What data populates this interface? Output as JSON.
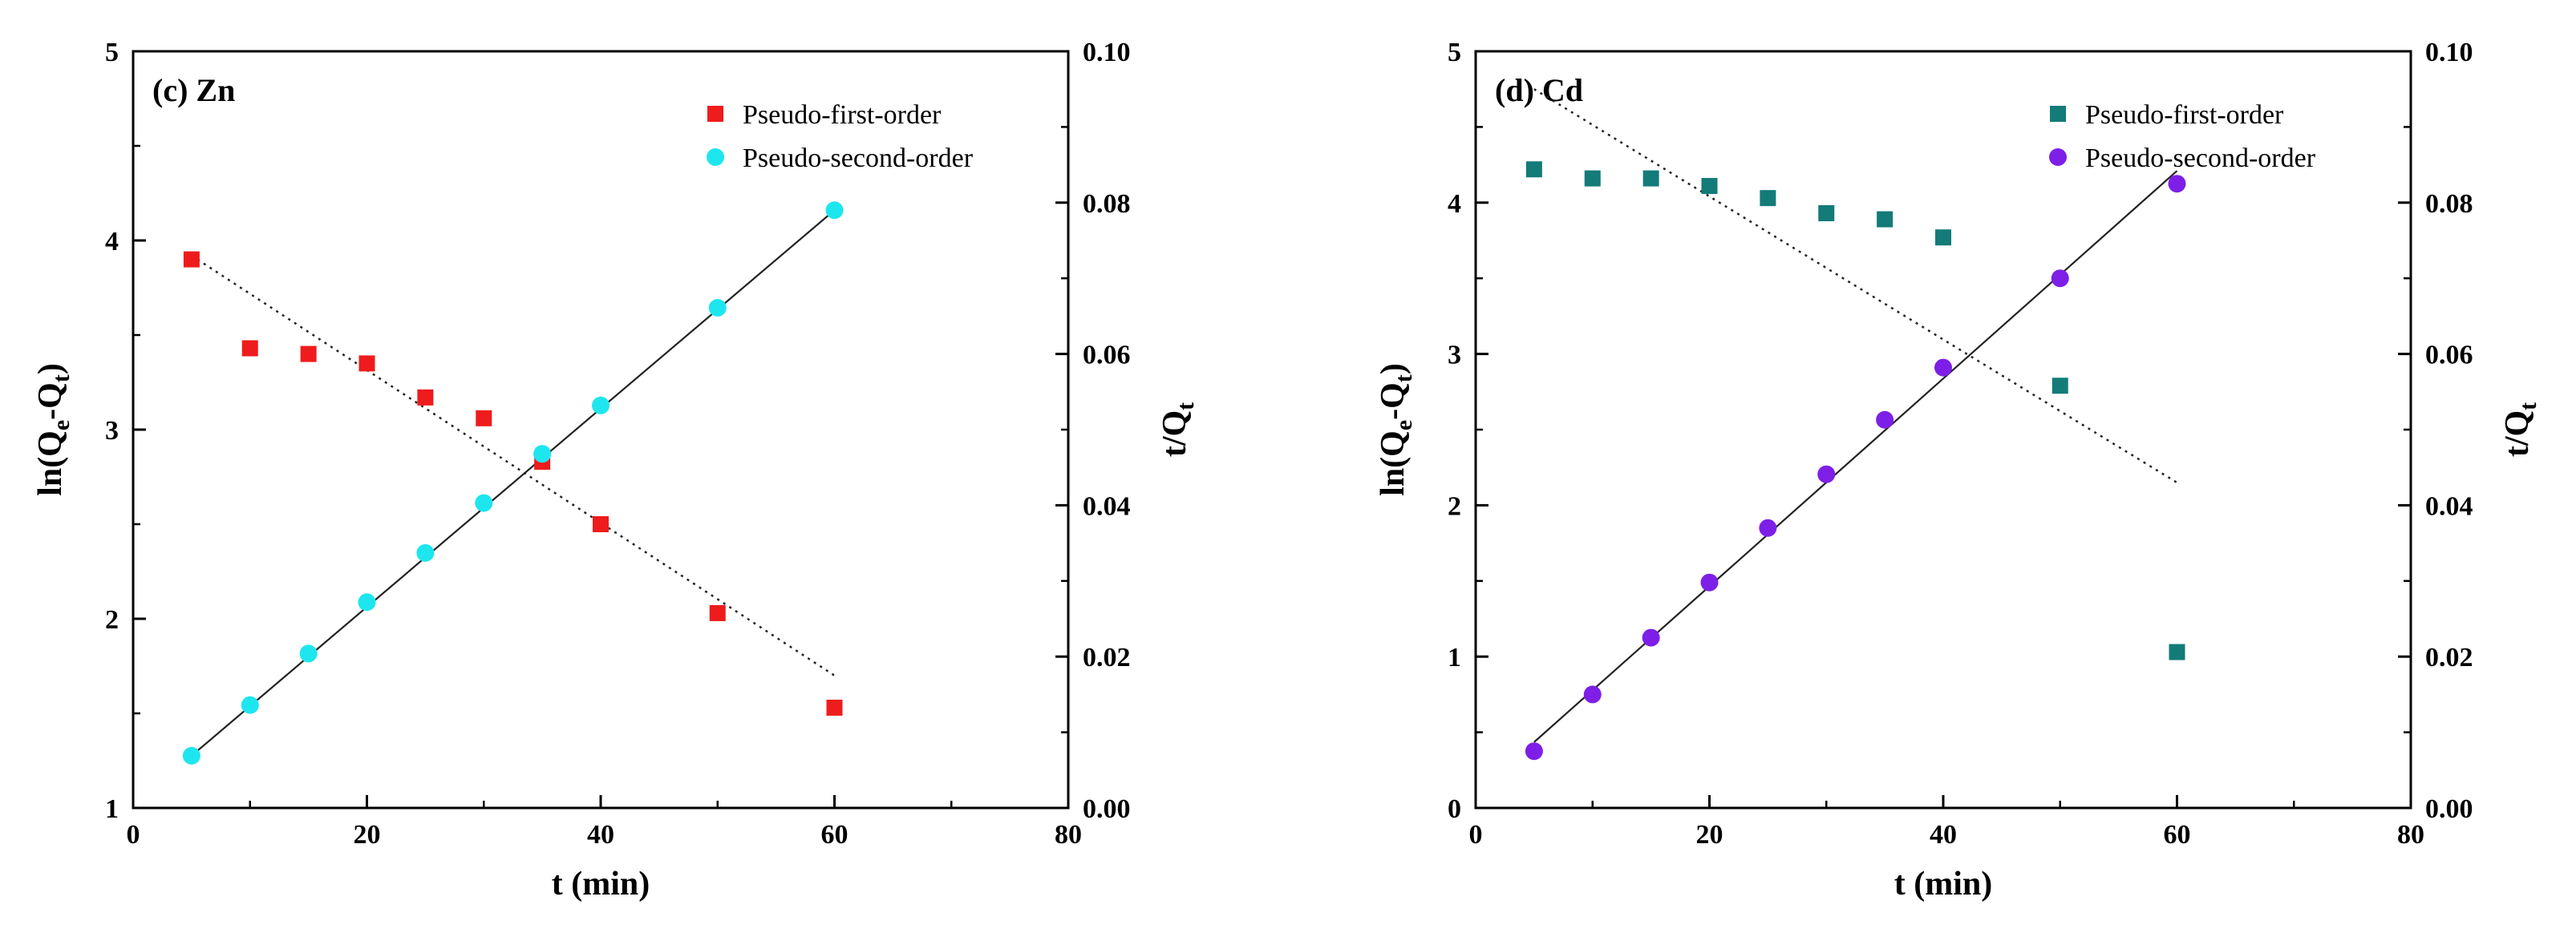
{
  "chart_data": [
    {
      "type": "scatter",
      "panel_label": "(c)",
      "element": "Zn",
      "xlabel": "t (min)",
      "ylabel_left": {
        "base": "ln(Q",
        "sub1": "e",
        "mid": "-Q",
        "sub2": "t",
        "end": ")"
      },
      "ylabel_right": {
        "base": "t/Q",
        "sub": "t"
      },
      "xlim": [
        0,
        80
      ],
      "ylim_left": [
        1,
        5
      ],
      "ylim_right": [
        0.0,
        0.1
      ],
      "x_ticks": [
        "0",
        "20",
        "40",
        "60",
        "80"
      ],
      "y_left_ticks": [
        "1",
        "2",
        "3",
        "4",
        "5"
      ],
      "y_right_ticks": [
        "0.00",
        "0.02",
        "0.04",
        "0.06",
        "0.08",
        "0.10"
      ],
      "legend_position": "top-right",
      "series": [
        {
          "name": "Pseudo-first-order",
          "axis": "left",
          "marker": "square",
          "color": "#ee1c1c",
          "x": [
            5,
            10,
            15,
            20,
            25,
            30,
            35,
            40,
            50,
            60
          ],
          "y": [
            3.9,
            3.43,
            3.4,
            3.35,
            3.17,
            3.06,
            2.83,
            2.5,
            2.03,
            1.53
          ],
          "fit": {
            "x": [
              5,
              60
            ],
            "y": [
              3.92,
              1.7
            ],
            "style": "dotted"
          }
        },
        {
          "name": "Pseudo-second-order",
          "axis": "right",
          "marker": "circle",
          "color": "#1ee6ee",
          "x": [
            5,
            10,
            15,
            20,
            25,
            30,
            35,
            40,
            50,
            60
          ],
          "y": [
            0.0069,
            0.0136,
            0.0204,
            0.0272,
            0.0337,
            0.0403,
            0.0468,
            0.0532,
            0.0661,
            0.079
          ],
          "fit": {
            "x": [
              5,
              60
            ],
            "y": [
              0.0069,
              0.079
            ],
            "style": "solid"
          }
        }
      ]
    },
    {
      "type": "scatter",
      "panel_label": "(d)",
      "element": "Cd",
      "xlabel": "t (min)",
      "ylabel_left": {
        "base": "ln(Q",
        "sub1": "e",
        "mid": "-Q",
        "sub2": "t",
        "end": ")"
      },
      "ylabel_right": {
        "base": "t/Q",
        "sub": "t"
      },
      "xlim": [
        0,
        80
      ],
      "ylim_left": [
        0,
        5
      ],
      "ylim_right": [
        0.0,
        0.1
      ],
      "x_ticks": [
        "0",
        "20",
        "40",
        "60",
        "80"
      ],
      "y_left_ticks": [
        "0",
        "1",
        "2",
        "3",
        "4",
        "5"
      ],
      "y_right_ticks": [
        "0.00",
        "0.02",
        "0.04",
        "0.06",
        "0.08",
        "0.10"
      ],
      "legend_position": "top-right",
      "series": [
        {
          "name": "Pseudo-first-order",
          "axis": "left",
          "marker": "square",
          "color": "#137b78",
          "x": [
            5,
            10,
            15,
            20,
            25,
            30,
            35,
            40,
            50,
            60
          ],
          "y": [
            4.22,
            4.16,
            4.16,
            4.11,
            4.03,
            3.93,
            3.89,
            3.77,
            2.79,
            1.03
          ],
          "fit": {
            "x": [
              5,
              60
            ],
            "y": [
              4.75,
              2.15
            ],
            "style": "dotted"
          }
        },
        {
          "name": "Pseudo-second-order",
          "axis": "right",
          "marker": "circle",
          "color": "#7e1fe8",
          "x": [
            5,
            10,
            15,
            20,
            25,
            30,
            35,
            40,
            50,
            60
          ],
          "y": [
            0.0075,
            0.015,
            0.0225,
            0.0298,
            0.037,
            0.0441,
            0.0513,
            0.0582,
            0.07,
            0.0825
          ],
          "fit": {
            "x": [
              5,
              60
            ],
            "y": [
              0.0087,
              0.0842
            ],
            "style": "solid"
          }
        }
      ]
    }
  ]
}
